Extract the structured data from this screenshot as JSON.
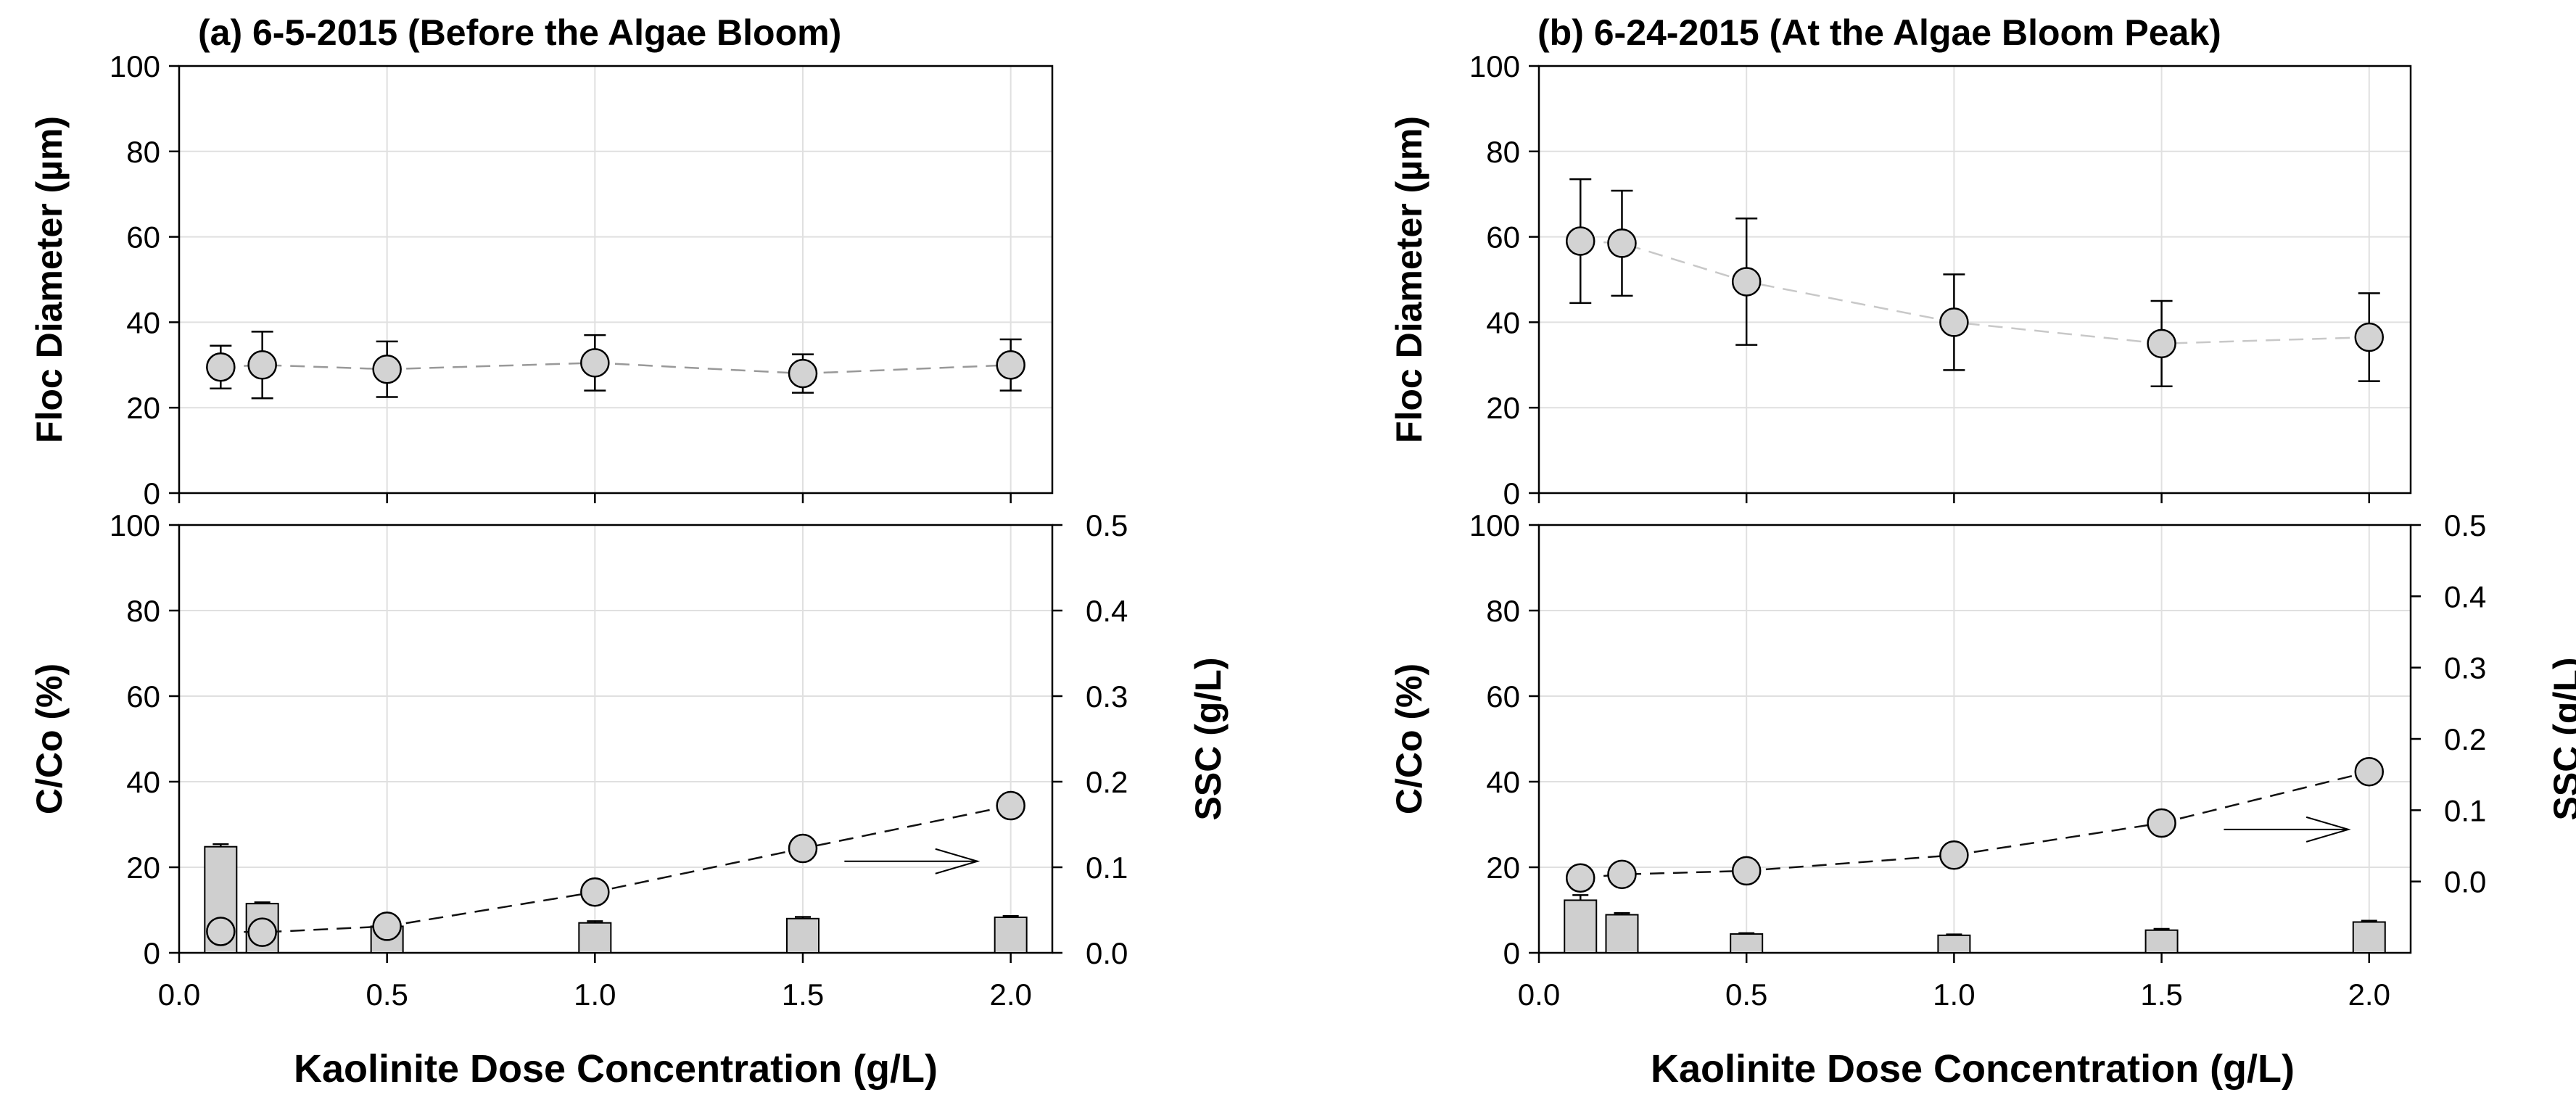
{
  "xlabel_a": "Kaolinite Dose Concentration (g/L)",
  "xlabel_b": "Kaolinite Dose Concentration (g/L)",
  "colors": {
    "marker_fill": "#d3d3d3",
    "bar_fill": "#cfcfcf",
    "grid": "#e0e0e0",
    "line_b_upper": "#c8c8c8",
    "line": "#555555"
  },
  "chart_data": [
    {
      "type": "scatter",
      "panel": "a",
      "position": "top",
      "title": "(a) 6-5-2015 (Before the Algae Bloom)",
      "ylabel": "Floc Diameter (µm)",
      "xlim": [
        0,
        2.1
      ],
      "ylim": [
        0,
        100
      ],
      "xticks": [
        "0.0",
        "0.5",
        "1.0",
        "1.5",
        "2.0"
      ],
      "yticks": [
        "0",
        "20",
        "40",
        "60",
        "80",
        "100"
      ],
      "series": [
        {
          "name": "Floc Diameter",
          "x": [
            0.1,
            0.2,
            0.5,
            1.0,
            1.5,
            2.0
          ],
          "y": [
            29.5,
            30,
            29,
            30.5,
            28,
            30
          ],
          "err": [
            5,
            7.8,
            6.5,
            6.5,
            4.5,
            6
          ]
        }
      ]
    },
    {
      "type": "bar+scatter",
      "panel": "a",
      "position": "bottom",
      "ylabel": "C/Co (%)",
      "y2label": "SSC (g/L)",
      "xlim": [
        0,
        2.1
      ],
      "ylim": [
        0,
        100
      ],
      "y2lim": [
        0,
        0.5
      ],
      "xticks": [
        "0.0",
        "0.5",
        "1.0",
        "1.5",
        "2.0"
      ],
      "yticks": [
        "0",
        "20",
        "40",
        "60",
        "80",
        "100"
      ],
      "y2ticks": [
        "0.0",
        "0.1",
        "0.2",
        "0.3",
        "0.4",
        "0.5"
      ],
      "bars": {
        "name": "C/Co",
        "x": [
          0.1,
          0.2,
          0.5,
          1.0,
          1.5,
          2.0
        ],
        "y": [
          24.8,
          11.5,
          6.2,
          7,
          8,
          8.3
        ],
        "err": [
          0.6,
          0.3,
          0.2,
          0.4,
          0.4,
          0.3
        ]
      },
      "series": [
        {
          "name": "SSC",
          "axis": "right",
          "x": [
            0.1,
            0.2,
            0.5,
            1.0,
            1.5,
            2.0
          ],
          "y": [
            0.025,
            0.024,
            0.031,
            0.071,
            0.122,
            0.172
          ]
        }
      ],
      "annotations": [
        {
          "type": "arrow",
          "points_to": "right axis",
          "x": [
            1.6,
            1.92
          ],
          "y2": 0.107
        }
      ]
    },
    {
      "type": "scatter",
      "panel": "b",
      "position": "top",
      "title": "(b) 6-24-2015 (At the Algae Bloom Peak)",
      "ylabel": "Floc Diameter (µm)",
      "xlim": [
        0,
        2.1
      ],
      "ylim": [
        0,
        100
      ],
      "xticks": [
        "0.0",
        "0.5",
        "1.0",
        "1.5",
        "2.0"
      ],
      "yticks": [
        "0",
        "20",
        "40",
        "60",
        "80",
        "100"
      ],
      "series": [
        {
          "name": "Floc Diameter",
          "x": [
            0.1,
            0.2,
            0.5,
            1.0,
            1.5,
            2.0
          ],
          "y": [
            59,
            58.5,
            49.5,
            40,
            35,
            36.5
          ],
          "err": [
            14.5,
            12.3,
            14.8,
            11.2,
            10,
            10.3
          ]
        }
      ]
    },
    {
      "type": "bar+scatter",
      "panel": "b",
      "position": "bottom",
      "ylabel": "C/Co (%)",
      "y2label": "SSC (g/L)",
      "xlim": [
        0,
        2.1
      ],
      "ylim": [
        0,
        100
      ],
      "y2lim": [
        -0.1,
        0.5
      ],
      "xticks": [
        "0.0",
        "0.5",
        "1.0",
        "1.5",
        "2.0"
      ],
      "yticks": [
        "0",
        "20",
        "40",
        "60",
        "80",
        "100"
      ],
      "y2ticks": [
        "0.0",
        "0.1",
        "0.2",
        "0.3",
        "0.4",
        "0.5"
      ],
      "bars": {
        "name": "C/Co",
        "x": [
          0.1,
          0.2,
          0.5,
          1.0,
          1.5,
          2.0
        ],
        "y": [
          12.3,
          8.9,
          4.4,
          4.1,
          5.3,
          7.2
        ],
        "err": [
          1.2,
          0.4,
          0.2,
          0.2,
          0.3,
          0.3
        ]
      },
      "series": [
        {
          "name": "SSC",
          "axis": "right",
          "x": [
            0.1,
            0.2,
            0.5,
            1.0,
            1.5,
            2.0
          ],
          "y": [
            0.005,
            0.01,
            0.015,
            0.037,
            0.082,
            0.154
          ]
        }
      ],
      "annotations": [
        {
          "type": "arrow",
          "points_to": "right axis",
          "x": [
            1.65,
            1.95
          ],
          "y2": 0.073
        }
      ]
    }
  ]
}
